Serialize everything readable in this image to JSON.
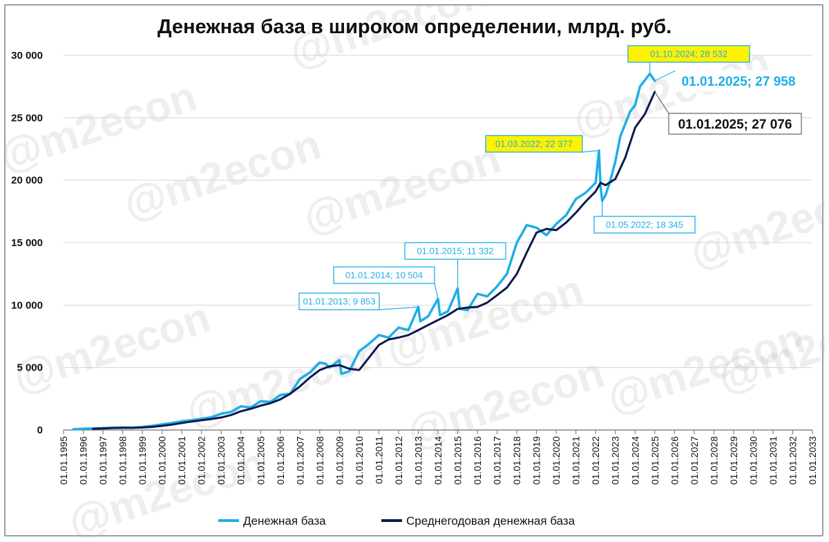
{
  "chart_data": {
    "type": "line",
    "title": "Денежная база в широком определении, млрд. руб.",
    "xlabel": "",
    "ylabel": "",
    "ylim": [
      0,
      30000
    ],
    "y_ticks": [
      0,
      5000,
      10000,
      15000,
      20000,
      25000,
      30000
    ],
    "y_tick_labels": [
      "0",
      "5 000",
      "10 000",
      "15 000",
      "20 000",
      "25 000",
      "30 000"
    ],
    "x_range": [
      1995,
      2033
    ],
    "x_ticks": [
      1995,
      1996,
      1997,
      1998,
      1999,
      2000,
      2001,
      2002,
      2003,
      2004,
      2005,
      2006,
      2007,
      2008,
      2009,
      2010,
      2011,
      2012,
      2013,
      2014,
      2015,
      2016,
      2017,
      2018,
      2019,
      2020,
      2021,
      2022,
      2023,
      2024,
      2025,
      2026,
      2027,
      2028,
      2029,
      2030,
      2031,
      2032,
      2033
    ],
    "x_tick_labels": [
      "01.01.1995",
      "01.01.1996",
      "01.01.1997",
      "01.01.1998",
      "01.01.1999",
      "01.01.2000",
      "01.01.2001",
      "01.01.2002",
      "01.01.2003",
      "01.01.2004",
      "01.01.2005",
      "01.01.2006",
      "01.01.2007",
      "01.01.2008",
      "01.01.2009",
      "01.01.2010",
      "01.01.2011",
      "01.01.2012",
      "01.01.2013",
      "01.01.2014",
      "01.01.2015",
      "01.01.2016",
      "01.01.2017",
      "01.01.2018",
      "01.01.2019",
      "01.01.2020",
      "01.01.2021",
      "01.01.2022",
      "01.01.2023",
      "01.01.2024",
      "01.01.2025",
      "01.01.2026",
      "01.01.2027",
      "01.01.2028",
      "01.01.2029",
      "01.01.2030",
      "01.01.2031",
      "01.01.2032",
      "01.01.2033"
    ],
    "grid": true,
    "legend_position": "bottom",
    "series": [
      {
        "name": "Денежная база",
        "color": "#1eaee8",
        "x": [
          1995.5,
          1996.0,
          1996.5,
          1997.0,
          1997.5,
          1998.0,
          1998.5,
          1999.0,
          1999.5,
          2000.0,
          2000.5,
          2001.0,
          2001.5,
          2002.0,
          2002.5,
          2003.0,
          2003.5,
          2004.0,
          2004.5,
          2005.0,
          2005.5,
          2006.0,
          2006.5,
          2007.0,
          2007.5,
          2008.0,
          2008.3,
          2008.5,
          2009.0,
          2009.1,
          2009.5,
          2010.0,
          2010.5,
          2011.0,
          2011.5,
          2012.0,
          2012.5,
          2013.0,
          2013.1,
          2013.5,
          2014.0,
          2014.1,
          2014.5,
          2015.0,
          2015.1,
          2015.5,
          2016.0,
          2016.5,
          2017.0,
          2017.5,
          2018.0,
          2018.5,
          2019.0,
          2019.5,
          2020.0,
          2020.5,
          2021.0,
          2021.5,
          2022.0,
          2022.167,
          2022.25,
          2022.333,
          2022.5,
          2022.75,
          2023.0,
          2023.25,
          2023.5,
          2023.75,
          2024.0,
          2024.25,
          2024.5,
          2024.75,
          2025.0
        ],
        "y": [
          60,
          100,
          130,
          150,
          180,
          200,
          180,
          250,
          330,
          450,
          560,
          700,
          780,
          900,
          1020,
          1300,
          1450,
          1900,
          1800,
          2300,
          2250,
          2800,
          2900,
          4100,
          4600,
          5400,
          5300,
          5000,
          5600,
          4500,
          4700,
          6300,
          6900,
          7600,
          7400,
          8200,
          8000,
          9853,
          8700,
          9100,
          10504,
          9200,
          9500,
          11332,
          9700,
          9600,
          10900,
          10700,
          11500,
          12500,
          15000,
          16400,
          16200,
          15600,
          16500,
          17200,
          18500,
          19000,
          19800,
          22377,
          19500,
          18345,
          18800,
          20000,
          21500,
          23500,
          24500,
          25500,
          26000,
          27500,
          28000,
          28532,
          27958
        ]
      },
      {
        "name": "Среднегодовая денежная база",
        "color": "#0b1a4e",
        "x": [
          1996.5,
          1997.0,
          1997.5,
          1998.0,
          1998.5,
          1999.0,
          1999.5,
          2000.0,
          2000.5,
          2001.0,
          2001.5,
          2002.0,
          2002.5,
          2003.0,
          2003.5,
          2004.0,
          2004.5,
          2005.0,
          2005.5,
          2006.0,
          2006.5,
          2007.0,
          2007.5,
          2008.0,
          2008.5,
          2009.0,
          2009.5,
          2010.0,
          2010.5,
          2011.0,
          2011.5,
          2012.0,
          2012.5,
          2013.0,
          2013.5,
          2014.0,
          2014.5,
          2015.0,
          2015.5,
          2016.0,
          2016.5,
          2017.0,
          2017.5,
          2018.0,
          2018.5,
          2019.0,
          2019.5,
          2020.0,
          2020.5,
          2021.0,
          2021.5,
          2022.0,
          2022.25,
          2022.5,
          2023.0,
          2023.5,
          2024.0,
          2024.5,
          2025.0
        ],
        "y": [
          100,
          130,
          160,
          170,
          180,
          200,
          250,
          330,
          430,
          560,
          680,
          780,
          880,
          1000,
          1200,
          1500,
          1700,
          1950,
          2150,
          2450,
          2900,
          3500,
          4200,
          4800,
          5100,
          5200,
          4900,
          4800,
          5800,
          6800,
          7250,
          7400,
          7600,
          8000,
          8400,
          8800,
          9200,
          9700,
          9800,
          9850,
          10200,
          10800,
          11400,
          12500,
          14200,
          15800,
          16100,
          16000,
          16600,
          17400,
          18300,
          19100,
          19800,
          19600,
          20100,
          21800,
          24200,
          25300,
          27076
        ]
      }
    ],
    "annotations": [
      {
        "text": "01.10.2024; 28 532",
        "x": 2024.75,
        "y": 28532,
        "style": "yellow",
        "color": "#1eaee8"
      },
      {
        "text": "01.01.2025;  27 958",
        "x": 2025.0,
        "y": 27958,
        "style": "large-cyan",
        "color": "#1eaee8"
      },
      {
        "text": "01.01.2025;  27 076",
        "x": 2025.0,
        "y": 27076,
        "style": "large-dark",
        "color": "#111111"
      },
      {
        "text": "01.03.2022; 22 377",
        "x": 2022.167,
        "y": 22377,
        "style": "yellow",
        "color": "#1eaee8"
      },
      {
        "text": "01.05.2022; 18 345",
        "x": 2022.333,
        "y": 18345,
        "style": "cyan",
        "color": "#1eaee8"
      },
      {
        "text": "01.01.2015; 11 332",
        "x": 2015.0,
        "y": 11332,
        "style": "cyan",
        "color": "#1eaee8"
      },
      {
        "text": "01.01.2014; 10 504",
        "x": 2014.0,
        "y": 10504,
        "style": "cyan",
        "color": "#1eaee8"
      },
      {
        "text": "01.01.2013; 9 853",
        "x": 2013.0,
        "y": 9853,
        "style": "cyan",
        "color": "#1eaee8"
      }
    ],
    "watermark": "@m2econ"
  }
}
